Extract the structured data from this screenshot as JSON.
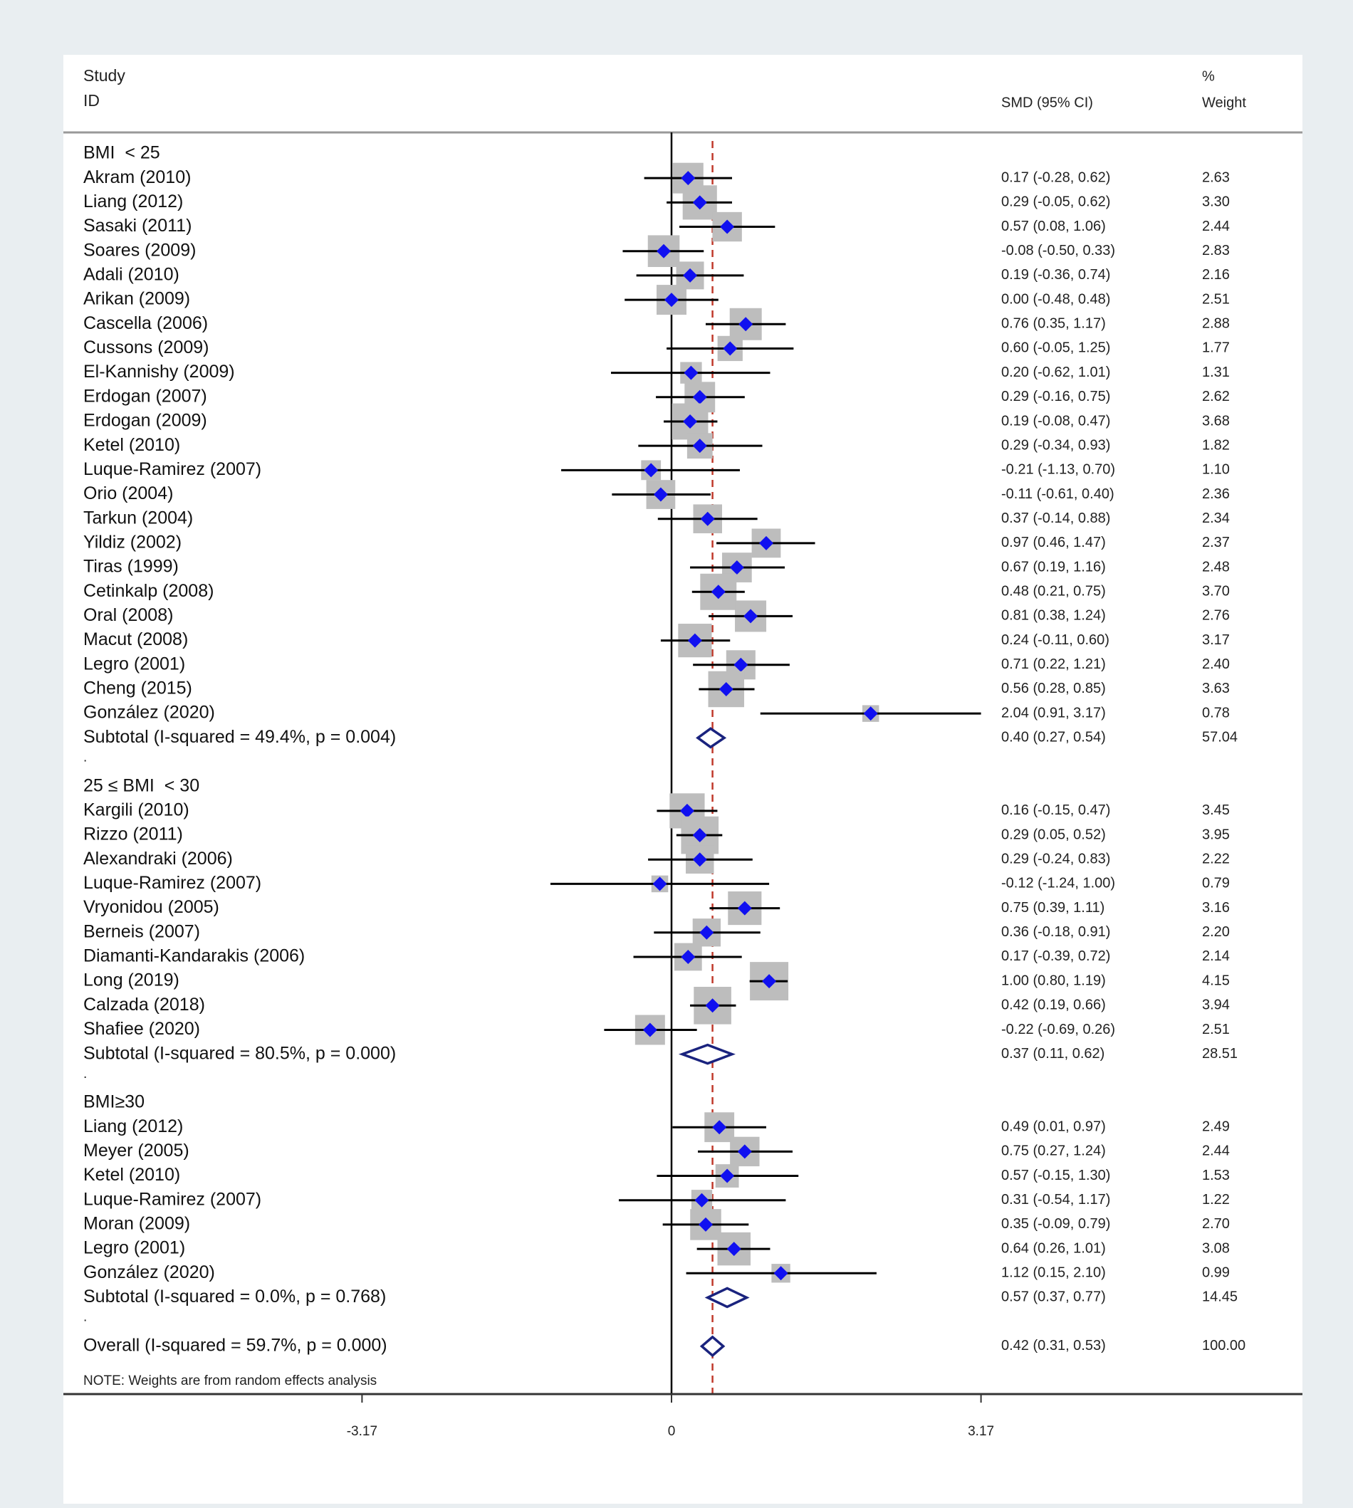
{
  "chart_data": {
    "type": "forest",
    "header": {
      "study_label_line1": "Study",
      "study_label_line2": "ID",
      "effect_label": "SMD (95% CI)",
      "weight_label_line1": "%",
      "weight_label_line2": "Weight"
    },
    "spacer_text": ".",
    "groups": [
      {
        "label": "BMI  < 25",
        "studies": [
          {
            "id": "Akram (2010)",
            "smd": 0.17,
            "lo": -0.28,
            "hi": 0.62,
            "ci_text": "0.17 (-0.28, 0.62)",
            "weight": "2.63"
          },
          {
            "id": "Liang (2012)",
            "smd": 0.29,
            "lo": -0.05,
            "hi": 0.62,
            "ci_text": "0.29 (-0.05, 0.62)",
            "weight": "3.30"
          },
          {
            "id": "Sasaki (2011)",
            "smd": 0.57,
            "lo": 0.08,
            "hi": 1.06,
            "ci_text": "0.57 (0.08, 1.06)",
            "weight": "2.44"
          },
          {
            "id": "Soares (2009)",
            "smd": -0.08,
            "lo": -0.5,
            "hi": 0.33,
            "ci_text": "-0.08 (-0.50, 0.33)",
            "weight": "2.83"
          },
          {
            "id": "Adali (2010)",
            "smd": 0.19,
            "lo": -0.36,
            "hi": 0.74,
            "ci_text": "0.19 (-0.36, 0.74)",
            "weight": "2.16"
          },
          {
            "id": "Arikan (2009)",
            "smd": 0.0,
            "lo": -0.48,
            "hi": 0.48,
            "ci_text": "0.00 (-0.48, 0.48)",
            "weight": "2.51"
          },
          {
            "id": "Cascella (2006)",
            "smd": 0.76,
            "lo": 0.35,
            "hi": 1.17,
            "ci_text": "0.76 (0.35, 1.17)",
            "weight": "2.88"
          },
          {
            "id": "Cussons (2009)",
            "smd": 0.6,
            "lo": -0.05,
            "hi": 1.25,
            "ci_text": "0.60 (-0.05, 1.25)",
            "weight": "1.77"
          },
          {
            "id": "El-Kannishy (2009)",
            "smd": 0.2,
            "lo": -0.62,
            "hi": 1.01,
            "ci_text": "0.20 (-0.62, 1.01)",
            "weight": "1.31"
          },
          {
            "id": "Erdogan (2007)",
            "smd": 0.29,
            "lo": -0.16,
            "hi": 0.75,
            "ci_text": "0.29 (-0.16, 0.75)",
            "weight": "2.62"
          },
          {
            "id": "Erdogan (2009)",
            "smd": 0.19,
            "lo": -0.08,
            "hi": 0.47,
            "ci_text": "0.19 (-0.08, 0.47)",
            "weight": "3.68"
          },
          {
            "id": "Ketel (2010)",
            "smd": 0.29,
            "lo": -0.34,
            "hi": 0.93,
            "ci_text": "0.29 (-0.34, 0.93)",
            "weight": "1.82"
          },
          {
            "id": "Luque-Ramirez (2007)",
            "smd": -0.21,
            "lo": -1.13,
            "hi": 0.7,
            "ci_text": "-0.21 (-1.13, 0.70)",
            "weight": "1.10"
          },
          {
            "id": "Orio (2004)",
            "smd": -0.11,
            "lo": -0.61,
            "hi": 0.4,
            "ci_text": "-0.11 (-0.61, 0.40)",
            "weight": "2.36"
          },
          {
            "id": "Tarkun (2004)",
            "smd": 0.37,
            "lo": -0.14,
            "hi": 0.88,
            "ci_text": "0.37 (-0.14, 0.88)",
            "weight": "2.34"
          },
          {
            "id": "Yildiz (2002)",
            "smd": 0.97,
            "lo": 0.46,
            "hi": 1.47,
            "ci_text": "0.97 (0.46, 1.47)",
            "weight": "2.37"
          },
          {
            "id": "Tiras (1999)",
            "smd": 0.67,
            "lo": 0.19,
            "hi": 1.16,
            "ci_text": "0.67 (0.19, 1.16)",
            "weight": "2.48"
          },
          {
            "id": "Cetinkalp (2008)",
            "smd": 0.48,
            "lo": 0.21,
            "hi": 0.75,
            "ci_text": "0.48 (0.21, 0.75)",
            "weight": "3.70"
          },
          {
            "id": "Oral (2008)",
            "smd": 0.81,
            "lo": 0.38,
            "hi": 1.24,
            "ci_text": "0.81 (0.38, 1.24)",
            "weight": "2.76"
          },
          {
            "id": "Macut (2008)",
            "smd": 0.24,
            "lo": -0.11,
            "hi": 0.6,
            "ci_text": "0.24 (-0.11, 0.60)",
            "weight": "3.17"
          },
          {
            "id": "Legro (2001)",
            "smd": 0.71,
            "lo": 0.22,
            "hi": 1.21,
            "ci_text": "0.71 (0.22, 1.21)",
            "weight": "2.40"
          },
          {
            "id": "Cheng (2015)",
            "smd": 0.56,
            "lo": 0.28,
            "hi": 0.85,
            "ci_text": "0.56 (0.28, 0.85)",
            "weight": "3.63"
          },
          {
            "id": "González (2020)",
            "smd": 2.04,
            "lo": 0.91,
            "hi": 3.17,
            "ci_text": "2.04 (0.91, 3.17)",
            "weight": "0.78"
          }
        ],
        "subtotal": {
          "label": "Subtotal  (I-squared = 49.4%, p = 0.004)",
          "smd": 0.4,
          "lo": 0.27,
          "hi": 0.54,
          "ci_text": "0.40 (0.27, 0.54)",
          "weight": "57.04"
        }
      },
      {
        "label": "25 ≤ BMI  < 30",
        "studies": [
          {
            "id": "Kargili (2010)",
            "smd": 0.16,
            "lo": -0.15,
            "hi": 0.47,
            "ci_text": "0.16 (-0.15, 0.47)",
            "weight": "3.45"
          },
          {
            "id": "Rizzo (2011)",
            "smd": 0.29,
            "lo": 0.05,
            "hi": 0.52,
            "ci_text": "0.29 (0.05, 0.52)",
            "weight": "3.95"
          },
          {
            "id": "Alexandraki (2006)",
            "smd": 0.29,
            "lo": -0.24,
            "hi": 0.83,
            "ci_text": "0.29 (-0.24, 0.83)",
            "weight": "2.22"
          },
          {
            "id": "Luque-Ramirez (2007)",
            "smd": -0.12,
            "lo": -1.24,
            "hi": 1.0,
            "ci_text": "-0.12 (-1.24, 1.00)",
            "weight": "0.79"
          },
          {
            "id": "Vryonidou (2005)",
            "smd": 0.75,
            "lo": 0.39,
            "hi": 1.11,
            "ci_text": "0.75 (0.39, 1.11)",
            "weight": "3.16"
          },
          {
            "id": "Berneis (2007)",
            "smd": 0.36,
            "lo": -0.18,
            "hi": 0.91,
            "ci_text": "0.36 (-0.18, 0.91)",
            "weight": "2.20"
          },
          {
            "id": "Diamanti-Kandarakis (2006)",
            "smd": 0.17,
            "lo": -0.39,
            "hi": 0.72,
            "ci_text": "0.17 (-0.39, 0.72)",
            "weight": "2.14"
          },
          {
            "id": "Long (2019)",
            "smd": 1.0,
            "lo": 0.8,
            "hi": 1.19,
            "ci_text": "1.00 (0.80, 1.19)",
            "weight": "4.15"
          },
          {
            "id": "Calzada (2018)",
            "smd": 0.42,
            "lo": 0.19,
            "hi": 0.66,
            "ci_text": "0.42 (0.19, 0.66)",
            "weight": "3.94"
          },
          {
            "id": "Shafiee (2020)",
            "smd": -0.22,
            "lo": -0.69,
            "hi": 0.26,
            "ci_text": "-0.22 (-0.69, 0.26)",
            "weight": "2.51"
          }
        ],
        "subtotal": {
          "label": "Subtotal  (I-squared = 80.5%, p = 0.000)",
          "smd": 0.37,
          "lo": 0.11,
          "hi": 0.62,
          "ci_text": "0.37 (0.11, 0.62)",
          "weight": "28.51"
        }
      },
      {
        "label": "BMI≥30",
        "studies": [
          {
            "id": "Liang (2012)",
            "smd": 0.49,
            "lo": 0.01,
            "hi": 0.97,
            "ci_text": "0.49 (0.01, 0.97)",
            "weight": "2.49"
          },
          {
            "id": "Meyer (2005)",
            "smd": 0.75,
            "lo": 0.27,
            "hi": 1.24,
            "ci_text": "0.75 (0.27, 1.24)",
            "weight": "2.44"
          },
          {
            "id": "Ketel (2010)",
            "smd": 0.57,
            "lo": -0.15,
            "hi": 1.3,
            "ci_text": "0.57 (-0.15, 1.30)",
            "weight": "1.53"
          },
          {
            "id": "Luque-Ramirez (2007)",
            "smd": 0.31,
            "lo": -0.54,
            "hi": 1.17,
            "ci_text": "0.31 (-0.54, 1.17)",
            "weight": "1.22"
          },
          {
            "id": "Moran (2009)",
            "smd": 0.35,
            "lo": -0.09,
            "hi": 0.79,
            "ci_text": "0.35 (-0.09, 0.79)",
            "weight": "2.70"
          },
          {
            "id": "Legro (2001)",
            "smd": 0.64,
            "lo": 0.26,
            "hi": 1.01,
            "ci_text": "0.64 (0.26, 1.01)",
            "weight": "3.08"
          },
          {
            "id": "González (2020)",
            "smd": 1.12,
            "lo": 0.15,
            "hi": 2.1,
            "ci_text": "1.12 (0.15, 2.10)",
            "weight": "0.99"
          }
        ],
        "subtotal": {
          "label": "Subtotal  (I-squared = 0.0%, p = 0.768)",
          "smd": 0.57,
          "lo": 0.37,
          "hi": 0.77,
          "ci_text": "0.57 (0.37, 0.77)",
          "weight": "14.45"
        }
      }
    ],
    "overall": {
      "label": "Overall  (I-squared = 59.7%, p = 0.000)",
      "smd": 0.42,
      "lo": 0.31,
      "hi": 0.53,
      "ci_text": "0.42 (0.31, 0.53)",
      "weight": "100.00"
    },
    "note": "NOTE: Weights are from random effects analysis",
    "xticks": [
      -3.17,
      0,
      3.17
    ],
    "xtick_labels": [
      "-3.17",
      "0",
      "3.17"
    ],
    "xlim": [
      -3.17,
      3.17
    ],
    "null_line": 0,
    "reference_line": 0.42,
    "colors": {
      "point": "#1010f0",
      "box": "#bdbdbd",
      "ci_line": "#000000",
      "diamond": "#1a237e",
      "reference_line": "#c0392b",
      "background": "#e9eef1"
    }
  }
}
